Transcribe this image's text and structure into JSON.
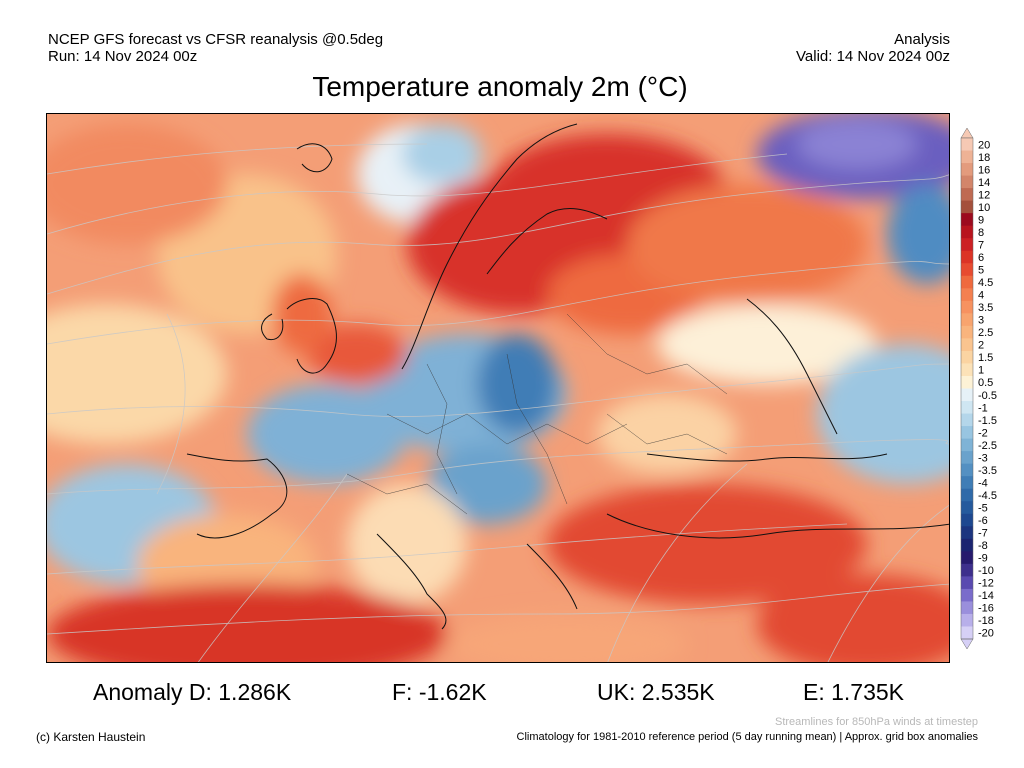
{
  "header": {
    "line1_left": "NCEP GFS forecast vs CFSR reanalysis @0.5deg",
    "line2_left": "Run: 14 Nov 2024 00z",
    "line1_right": "Analysis",
    "line2_right": "Valid: 14 Nov 2024 00z"
  },
  "title": "Temperature anomaly 2m (°C)",
  "colorbar": {
    "levels": [
      "20",
      "18",
      "16",
      "14",
      "12",
      "10",
      "9",
      "8",
      "7",
      "6",
      "5",
      "4.5",
      "4",
      "3.5",
      "3",
      "2.5",
      "2",
      "1.5",
      "1",
      "0.5",
      "-0.5",
      "-1",
      "-1.5",
      "-2",
      "-2.5",
      "-3",
      "-3.5",
      "-4",
      "-4.5",
      "-5",
      "-6",
      "-7",
      "-8",
      "-9",
      "-10",
      "-12",
      "-14",
      "-16",
      "-18",
      "-20"
    ],
    "colors": [
      "#f6c9b4",
      "#eeb295",
      "#e39b7d",
      "#d3856a",
      "#bf6a52",
      "#a4503c",
      "#9c0a1e",
      "#b8141e",
      "#cc2024",
      "#dc3426",
      "#e74b30",
      "#ef6a3e",
      "#f48050",
      "#f79260",
      "#f8a46e",
      "#f9b47d",
      "#fac48f",
      "#fbd4a2",
      "#fce2b8",
      "#fdf2d6",
      "#e6f1f7",
      "#cfe6f2",
      "#b4d6ea",
      "#98c5e1",
      "#7fb3d6",
      "#6aa2cc",
      "#5490c2",
      "#3f7db6",
      "#2f6aa9",
      "#255a9d",
      "#1e4890",
      "#1c357f",
      "#1b2470",
      "#261a6d",
      "#3d2f8c",
      "#5a4ab0",
      "#7a6ccb",
      "#9a8fdc",
      "#b8afea",
      "#d6d0f6"
    ]
  },
  "stats": {
    "d": "Anomaly D: 1.286K",
    "f": "F: -1.62K",
    "uk": "UK: 2.535K",
    "e": "E: 1.735K"
  },
  "footer": {
    "streamline_note": "Streamlines for 850hPa winds at timestep",
    "copyright": "(c) Karsten Haustein",
    "climatology_note": "Climatology for 1981-2010 reference period (5 day running mean) | Approx. grid box anomalies"
  }
}
